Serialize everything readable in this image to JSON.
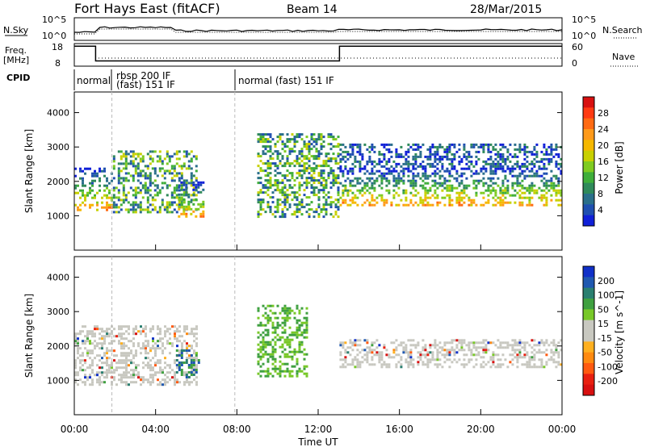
{
  "header": {
    "radar": "Fort Hays East (fitACF)",
    "beam": "Beam 14",
    "date": "28/Mar/2015"
  },
  "side_labels": {
    "nsky": "N.Sky",
    "freq": "Freq.",
    "mhz": "[MHz]",
    "cpid": "CPID",
    "nsearch": "N.Search",
    "nave": "Nave"
  },
  "noise_axis": {
    "left_top": "10^5",
    "left_bottom": "10^0",
    "right_top": "10^5",
    "right_bottom": "10^0"
  },
  "freq_axis": {
    "ticks": [
      "18",
      "8"
    ],
    "right_ticks": [
      "60",
      "0"
    ]
  },
  "cpid_segments": [
    {
      "label_line1": "normal",
      "label_line2": ""
    },
    {
      "label_line1": "rbsp 200 IF",
      "label_line2": "(fast) 151 IF"
    },
    {
      "label_line1": "normal (fast) 151 IF",
      "label_line2": ""
    }
  ],
  "colorbars": {
    "power": {
      "title": "Power [dB]",
      "ticks": [
        "28",
        "24",
        "20",
        "16",
        "12",
        "8",
        "4"
      ],
      "colors": [
        "#d81010",
        "#ff3a12",
        "#ff6a12",
        "#ff9a1a",
        "#f5b800",
        "#c8d000",
        "#7fcb20",
        "#3fae3a",
        "#2f8a5a",
        "#2a6f8a",
        "#1f4fb0",
        "#1020d8"
      ]
    },
    "velocity": {
      "title": "Velocity [m s^-1]",
      "ticks": [
        "200",
        "100",
        "50",
        "15",
        "-15",
        "-50",
        "-100",
        "-200"
      ],
      "colors": [
        "#1030c8",
        "#1f58b0",
        "#2a7f70",
        "#3fa040",
        "#78c828",
        "#c8c8c0",
        "#c8c8c0",
        "#ffb020",
        "#ff8a10",
        "#ff5a10",
        "#e82010",
        "#d81010"
      ]
    }
  },
  "chart_data": {
    "type": "heatmap",
    "x_unit": "hours UT",
    "xlim": [
      0,
      24
    ],
    "xtick_labels": [
      "00:00",
      "04:00",
      "08:00",
      "12:00",
      "16:00",
      "20:00",
      "00:00"
    ],
    "xlabel": "Time UT",
    "ylabel": "Slant Range [km]",
    "ylim": [
      0,
      4600
    ],
    "ytick_labels": [
      "1000",
      "2000",
      "3000",
      "4000"
    ],
    "cpid_changes_hours": [
      1.85,
      7.9
    ],
    "freq_mhz_segments": [
      {
        "start": 0.0,
        "end": 1.05,
        "freq": 17.5
      },
      {
        "start": 1.05,
        "end": 13.05,
        "freq": 10.5
      },
      {
        "start": 13.05,
        "end": 24.0,
        "freq": 17.5
      }
    ],
    "echo_regions_power": [
      {
        "t0": 0.0,
        "t1": 1.9,
        "r0": 1200,
        "r1": 2400,
        "level": "high"
      },
      {
        "t0": 1.9,
        "t1": 6.0,
        "r0": 1100,
        "r1": 2900,
        "level": "mid"
      },
      {
        "t0": 5.1,
        "t1": 6.3,
        "r0": 1000,
        "r1": 2000,
        "level": "high"
      },
      {
        "t0": 9.0,
        "t1": 13.0,
        "r0": 1000,
        "r1": 3400,
        "level": "mid"
      },
      {
        "t0": 13.05,
        "t1": 24.0,
        "r0": 1300,
        "r1": 2400,
        "level": "high"
      },
      {
        "t0": 13.05,
        "t1": 24.0,
        "r0": 2400,
        "r1": 3100,
        "level": "low"
      }
    ],
    "echo_regions_velocity": [
      {
        "t0": 0.0,
        "t1": 6.0,
        "r0": 900,
        "r1": 2600,
        "v": "near-zero"
      },
      {
        "t0": 5.0,
        "t1": 6.1,
        "r0": 1100,
        "r1": 1900,
        "v": "positive"
      },
      {
        "t0": 9.0,
        "t1": 11.5,
        "r0": 1100,
        "r1": 3200,
        "v": "weak-positive"
      },
      {
        "t0": 13.05,
        "t1": 24.0,
        "r0": 1400,
        "r1": 2200,
        "v": "near-zero"
      }
    ]
  }
}
